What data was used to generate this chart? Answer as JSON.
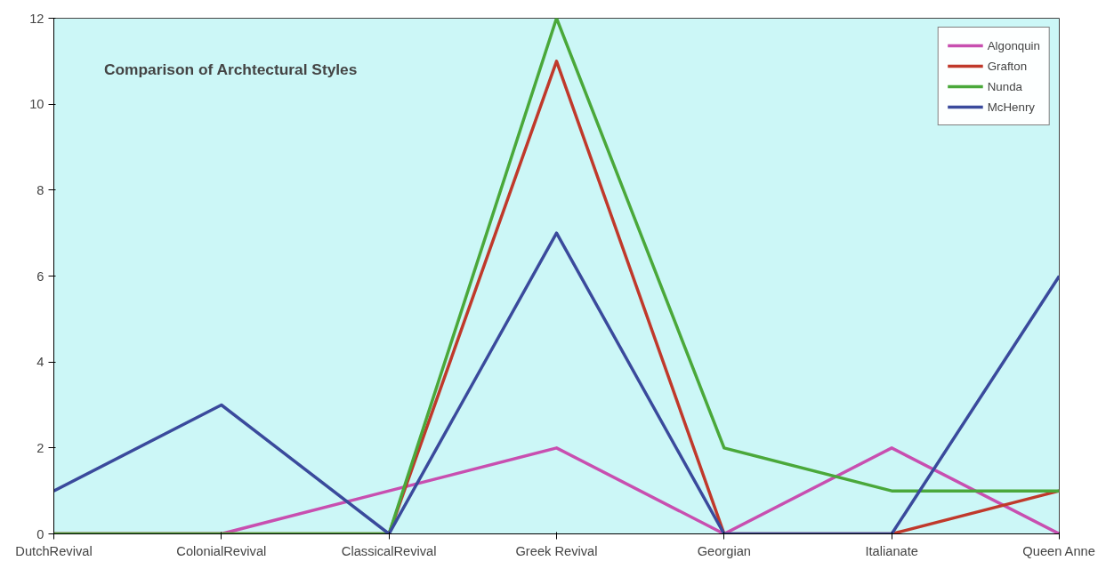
{
  "chart_data": {
    "type": "line",
    "title": "Comparison of Archtectural Styles",
    "categories": [
      "DutchRevival",
      "ColonialRevival",
      "ClassicalRevival",
      "Greek Revival",
      "Georgian",
      "Italianate",
      "Queen Anne"
    ],
    "series": [
      {
        "name": "Algonquin",
        "color": "#c84fb0",
        "values": [
          0,
          0,
          1,
          2,
          0,
          2,
          0
        ]
      },
      {
        "name": "Grafton",
        "color": "#c0392b",
        "values": [
          0,
          0,
          0,
          11,
          0,
          0,
          1
        ]
      },
      {
        "name": "Nunda",
        "color": "#4aa83a",
        "values": [
          0,
          0,
          0,
          12,
          2,
          1,
          1
        ]
      },
      {
        "name": "McHenry",
        "color": "#3a4a9c",
        "values": [
          1,
          3,
          0,
          7,
          0,
          0,
          6
        ]
      }
    ],
    "ylim": [
      0,
      12
    ],
    "yticks": [
      0,
      2,
      4,
      6,
      8,
      10,
      12
    ],
    "grid": false,
    "legend": "top right",
    "marker": "none",
    "line_style": "solid"
  }
}
